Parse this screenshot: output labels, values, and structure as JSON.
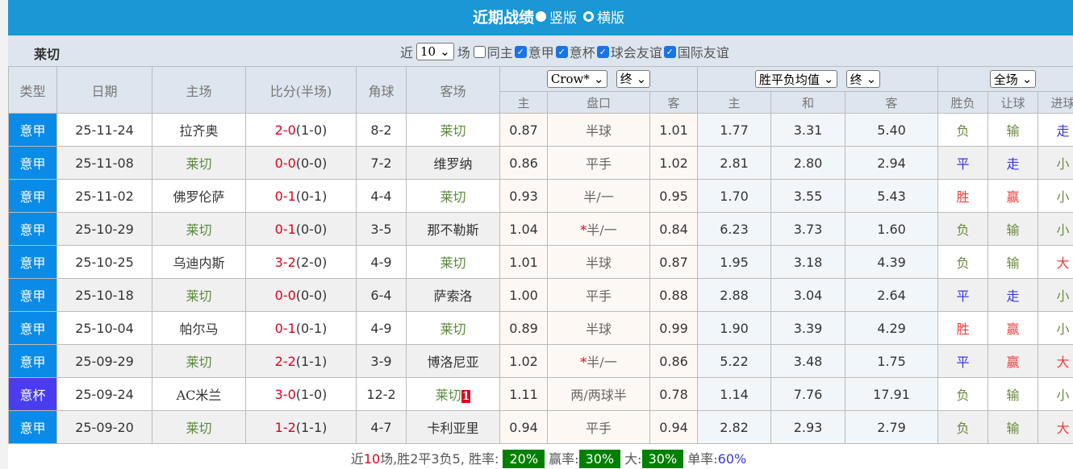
{
  "title": "近期战绩",
  "view_options": [
    "竖版",
    "横版"
  ],
  "toolbar": {
    "team": "莱切",
    "near": "近",
    "count": "10",
    "unit": "场",
    "filters": [
      {
        "label": "同主",
        "checked": false
      },
      {
        "label": "意甲",
        "checked": true
      },
      {
        "label": "意杯",
        "checked": true
      },
      {
        "label": "球会友谊",
        "checked": true
      },
      {
        "label": "国际友谊",
        "checked": true
      }
    ]
  },
  "headers": {
    "type": "类型",
    "date": "日期",
    "home": "主场",
    "score": "比分(半场)",
    "corner": "角球",
    "away": "客场",
    "company": "Crow*",
    "final1": "终",
    "odds_type": "胜平负均值",
    "final2": "终",
    "period": "全场",
    "ah_home": "主",
    "ah_line": "盘口",
    "ah_away": "客",
    "eu_home": "主",
    "eu_draw": "和",
    "eu_away": "客",
    "result": "胜负",
    "handicap": "让球",
    "goals": "进球"
  },
  "colors": {
    "title_bar": "#1a97d5",
    "league_serie_a": "#0a8be8",
    "league_cup": "#4a3df0",
    "badge": "#008000"
  },
  "rows": [
    {
      "type": "意甲",
      "date": "25-11-24",
      "home": "拉齐奥",
      "home_hl": false,
      "score": "2-0",
      "half": "(1-0)",
      "corner": "8-2",
      "away": "莱切",
      "away_hl": true,
      "card": "",
      "ah_h": "0.87",
      "line": "半球",
      "line_star": "",
      "ah_a": "1.01",
      "w": "1.77",
      "d": "3.31",
      "l": "5.40",
      "res": "负",
      "hc": "输",
      "goals": "走"
    },
    {
      "type": "意甲",
      "date": "25-11-08",
      "home": "莱切",
      "home_hl": true,
      "score": "0-0",
      "half": "(0-0)",
      "corner": "7-2",
      "away": "维罗纳",
      "away_hl": false,
      "card": "",
      "ah_h": "0.86",
      "line": "平手",
      "line_star": "",
      "ah_a": "1.02",
      "w": "2.81",
      "d": "2.80",
      "l": "2.94",
      "res": "平",
      "hc": "走",
      "goals": "小"
    },
    {
      "type": "意甲",
      "date": "25-11-02",
      "home": "佛罗伦萨",
      "home_hl": false,
      "score": "0-1",
      "half": "(0-1)",
      "corner": "4-4",
      "away": "莱切",
      "away_hl": true,
      "card": "",
      "ah_h": "0.93",
      "line": "半/一",
      "line_star": "",
      "ah_a": "0.95",
      "w": "1.70",
      "d": "3.55",
      "l": "5.43",
      "res": "胜",
      "hc": "赢",
      "goals": "小"
    },
    {
      "type": "意甲",
      "date": "25-10-29",
      "home": "莱切",
      "home_hl": true,
      "score": "0-1",
      "half": "(0-0)",
      "corner": "3-5",
      "away": "那不勒斯",
      "away_hl": false,
      "card": "",
      "ah_h": "1.04",
      "line": "半/一",
      "line_star": "*",
      "ah_a": "0.84",
      "w": "6.23",
      "d": "3.73",
      "l": "1.60",
      "res": "负",
      "hc": "输",
      "goals": "小"
    },
    {
      "type": "意甲",
      "date": "25-10-25",
      "home": "乌迪内斯",
      "home_hl": false,
      "score": "3-2",
      "half": "(2-0)",
      "corner": "4-9",
      "away": "莱切",
      "away_hl": true,
      "card": "",
      "ah_h": "1.01",
      "line": "半球",
      "line_star": "",
      "ah_a": "0.87",
      "w": "1.95",
      "d": "3.18",
      "l": "4.39",
      "res": "负",
      "hc": "输",
      "goals": "大"
    },
    {
      "type": "意甲",
      "date": "25-10-18",
      "home": "莱切",
      "home_hl": true,
      "score": "0-0",
      "half": "(0-0)",
      "corner": "6-4",
      "away": "萨索洛",
      "away_hl": false,
      "card": "",
      "ah_h": "1.00",
      "line": "平手",
      "line_star": "",
      "ah_a": "0.88",
      "w": "2.88",
      "d": "3.04",
      "l": "2.64",
      "res": "平",
      "hc": "走",
      "goals": "小"
    },
    {
      "type": "意甲",
      "date": "25-10-04",
      "home": "帕尔马",
      "home_hl": false,
      "score": "0-1",
      "half": "(0-1)",
      "corner": "4-9",
      "away": "莱切",
      "away_hl": true,
      "card": "",
      "ah_h": "0.89",
      "line": "半球",
      "line_star": "",
      "ah_a": "0.99",
      "w": "1.90",
      "d": "3.39",
      "l": "4.29",
      "res": "胜",
      "hc": "赢",
      "goals": "小"
    },
    {
      "type": "意甲",
      "date": "25-09-29",
      "home": "莱切",
      "home_hl": true,
      "score": "2-2",
      "half": "(1-1)",
      "corner": "3-9",
      "away": "博洛尼亚",
      "away_hl": false,
      "card": "",
      "ah_h": "1.02",
      "line": "半/一",
      "line_star": "*",
      "ah_a": "0.86",
      "w": "5.22",
      "d": "3.48",
      "l": "1.75",
      "res": "平",
      "hc": "赢",
      "goals": "大"
    },
    {
      "type": "意杯",
      "date": "25-09-24",
      "home": "AC米兰",
      "home_hl": false,
      "score": "3-0",
      "half": "(1-0)",
      "corner": "12-2",
      "away": "莱切",
      "away_hl": true,
      "card": "1",
      "ah_h": "1.11",
      "line": "两/两球半",
      "line_star": "",
      "ah_a": "0.78",
      "w": "1.14",
      "d": "7.76",
      "l": "17.91",
      "res": "负",
      "hc": "输",
      "goals": "小"
    },
    {
      "type": "意甲",
      "date": "25-09-20",
      "home": "莱切",
      "home_hl": true,
      "score": "1-2",
      "half": "(1-1)",
      "corner": "4-7",
      "away": "卡利亚里",
      "away_hl": false,
      "card": "",
      "ah_h": "0.94",
      "line": "平手",
      "line_star": "",
      "ah_a": "0.94",
      "w": "2.82",
      "d": "2.93",
      "l": "2.79",
      "res": "负",
      "hc": "输",
      "goals": "大"
    }
  ],
  "footer": {
    "p1": "近",
    "n": "10",
    "p2": "场,胜2平3负5, 胜率:",
    "win_rate": "20%",
    "l2": "赢率:",
    "cover_rate": "30%",
    "l3": "大:",
    "over_rate": "30%",
    "l4": "单率:",
    "odd_rate": "60%"
  }
}
